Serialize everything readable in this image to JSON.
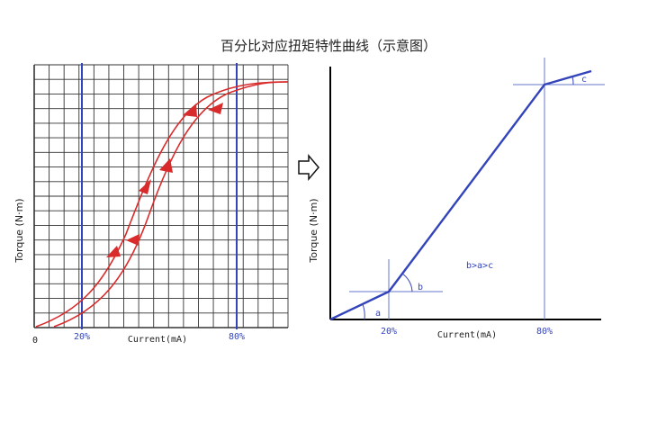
{
  "title": "百分比对应扭矩特性曲线（示意图）",
  "arrow_icon": "right-arrow-icon",
  "left_chart": {
    "ylabel": "Torque (N·m)",
    "xlabel": "Current(mA)",
    "origin_label": "0",
    "marker_20": "20%",
    "marker_80": "80%",
    "colors": {
      "grid": "#333333",
      "curve": "#d92b2b",
      "marker": "#3344bb"
    }
  },
  "right_chart": {
    "ylabel": "Torque (N·m)",
    "xlabel": "Current(mA)",
    "marker_20": "20%",
    "marker_80": "80%",
    "angle_a": "a",
    "angle_b": "b",
    "angle_c": "c",
    "relation": "b>a>c",
    "colors": {
      "axis": "#000000",
      "line": "#3344bb",
      "guide": "#6677cc"
    }
  }
}
